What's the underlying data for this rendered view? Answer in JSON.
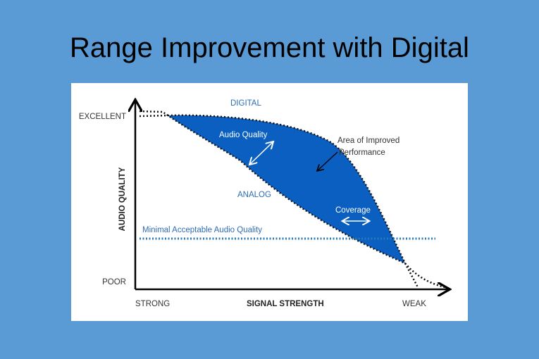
{
  "slide": {
    "title": "Range Improvement with Digital"
  },
  "diagram": {
    "y_axis_label": "AUDIO QUALITY",
    "x_axis_label": "SIGNAL STRENGTH",
    "y_top_label": "EXCELLENT",
    "y_bottom_label": "POOR",
    "x_left_label": "STRONG",
    "x_right_label": "WEAK",
    "digital_label": "DIGITAL",
    "analog_label": "ANALOG",
    "audio_quality_label": "Audio Quality",
    "area_label_line1": "Area of Improved",
    "area_label_line2": "Performance",
    "coverage_label": "Coverage",
    "threshold_label": "Minimal Acceptable Audio Quality",
    "colors": {
      "area_fill": "#0a5fc0",
      "threshold": "#2a7ab8",
      "label_blue": "#2d6db5",
      "background": "#5b9bd5"
    }
  }
}
